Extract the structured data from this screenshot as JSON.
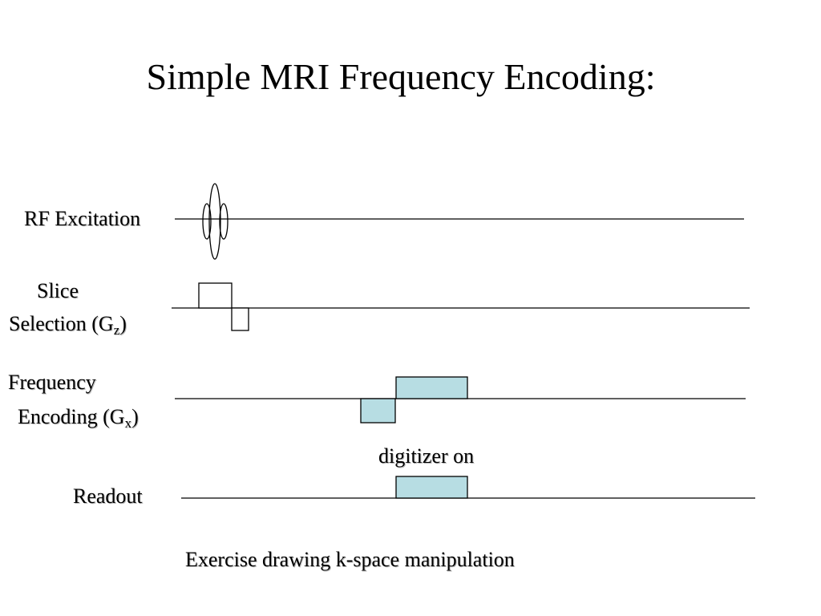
{
  "title": "Simple MRI Frequency Encoding:",
  "channels": {
    "rf": {
      "label": "RF Excitation"
    },
    "slice": {
      "line1": "Slice",
      "line2": "Selection (G",
      "subscript": "z",
      "close": ")"
    },
    "frequency": {
      "line1": "Frequency",
      "line2": "Encoding (G",
      "subscript": "x",
      "close": ")"
    },
    "readout": {
      "label": "Readout"
    }
  },
  "annotation": "digitizer on",
  "caption": "Exercise drawing k-space manipulation",
  "colors": {
    "lobe_fill": "#b7dde3",
    "line": "#000000",
    "background": "#ffffff"
  }
}
